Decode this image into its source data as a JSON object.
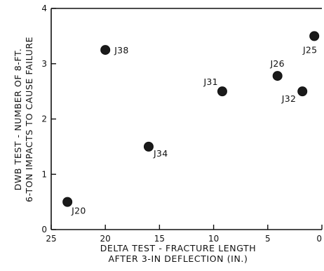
{
  "chart_data": {
    "type": "scatter",
    "title": "",
    "xlabel": [
      "DELTA TEST - FRACTURE LENGTH",
      "AFTER 3-IN DEFLECTION (IN.)"
    ],
    "ylabel": [
      "DWB TEST - NUMBER OF 8-FT.",
      "6-TON IMPACTS TO CAUSE FAILURE"
    ],
    "xlim": [
      25,
      0
    ],
    "ylim": [
      0,
      4
    ],
    "x_reversed": true,
    "grid": false,
    "legend": "none",
    "x_ticks": [
      25,
      20,
      15,
      10,
      5,
      0
    ],
    "y_ticks": [
      0,
      1,
      2,
      3,
      4
    ],
    "points": [
      {
        "label": "J20",
        "x": 23.5,
        "y": 0.5
      },
      {
        "label": "J38",
        "x": 20,
        "y": 3.25
      },
      {
        "label": "J34",
        "x": 16,
        "y": 1.5
      },
      {
        "label": "J31",
        "x": 9.2,
        "y": 2.5
      },
      {
        "label": "J26",
        "x": 4.1,
        "y": 2.78
      },
      {
        "label": "J32",
        "x": 1.8,
        "y": 2.5
      },
      {
        "label": "J25",
        "x": 0.7,
        "y": 3.5
      }
    ],
    "point_color": "#1a1a1a"
  }
}
